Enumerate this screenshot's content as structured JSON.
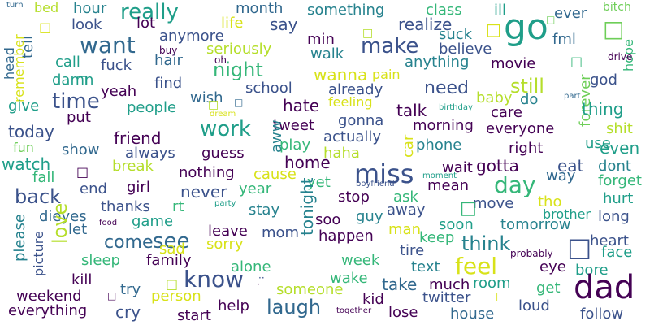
{
  "background": "#ffffff",
  "palette": {
    "dark_purple": "#440154",
    "indigo": "#3b528b",
    "blue": "#31688e",
    "teal": "#26828e",
    "teal_green": "#1f9e89",
    "green": "#35b779",
    "light_green": "#6ece58",
    "yellow_green": "#b5de2b",
    "yellow": "#d8e219"
  },
  "words": [
    {
      "text": "turn",
      "color": "#31688e",
      "weight": 3
    },
    {
      "text": "bed",
      "color": "#b5de2b",
      "weight": 4
    },
    {
      "text": "hour",
      "color": "#26828e",
      "weight": 5
    },
    {
      "text": "really",
      "color": "#1f9e89",
      "weight": 7
    },
    {
      "text": "month",
      "color": "#31688e",
      "weight": 5
    },
    {
      "text": "something",
      "color": "#26828e",
      "weight": 5
    },
    {
      "text": "class",
      "color": "#35b779",
      "weight": 5
    },
    {
      "text": "ill",
      "color": "#1f9e89",
      "weight": 5
    },
    {
      "text": "ever",
      "color": "#31688e",
      "weight": 5
    },
    {
      "text": "bitch",
      "color": "#6ece58",
      "weight": 4
    },
    {
      "text": "go",
      "color": "#1f9e89",
      "weight": 9
    },
    {
      "text": "look",
      "color": "#3b528b",
      "weight": 5
    },
    {
      "text": "lot",
      "color": "#440154",
      "weight": 5
    },
    {
      "text": "life",
      "color": "#d8e219",
      "weight": 5
    },
    {
      "text": "say",
      "color": "#3b528b",
      "weight": 5
    },
    {
      "text": "realize",
      "color": "#3b528b",
      "weight": 5
    },
    {
      "text": "suck",
      "color": "#26828e",
      "weight": 5
    },
    {
      "text": "fml",
      "color": "#31688e",
      "weight": 5
    },
    {
      "text": "want",
      "color": "#31688e",
      "weight": 8
    },
    {
      "text": "anymore",
      "color": "#3b528b",
      "weight": 5
    },
    {
      "text": "min",
      "color": "#440154",
      "weight": 5
    },
    {
      "text": "make",
      "color": "#3b528b",
      "weight": 7
    },
    {
      "text": "believe",
      "color": "#3b528b",
      "weight": 5
    },
    {
      "text": "tell",
      "color": "#31688e",
      "weight": 5
    },
    {
      "text": "seriously",
      "color": "#b5de2b",
      "weight": 5
    },
    {
      "text": "walk",
      "color": "#26828e",
      "weight": 5
    },
    {
      "text": "hope",
      "color": "#35b779",
      "weight": 5
    },
    {
      "text": "buy",
      "color": "#440154",
      "weight": 3
    },
    {
      "text": "hair",
      "color": "#31688e",
      "weight": 5
    },
    {
      "text": "oh",
      "color": "#440154",
      "weight": 3
    },
    {
      "text": "drive",
      "color": "#440154",
      "weight": 3
    },
    {
      "text": "call",
      "color": "#1f9e89",
      "weight": 5
    },
    {
      "text": "fuck",
      "color": "#3b528b",
      "weight": 5
    },
    {
      "text": "night",
      "color": "#35b779",
      "weight": 7
    },
    {
      "text": "anything",
      "color": "#26828e",
      "weight": 5
    },
    {
      "text": "movie",
      "color": "#440154",
      "weight": 5
    },
    {
      "text": "head",
      "color": "#31688e",
      "weight": 5
    },
    {
      "text": "remember",
      "color": "#d8e219",
      "weight": 5
    },
    {
      "text": "damn",
      "color": "#1f9e89",
      "weight": 5
    },
    {
      "text": "find",
      "color": "#3b528b",
      "weight": 5
    },
    {
      "text": "wanna",
      "color": "#d8e219",
      "weight": 5
    },
    {
      "text": "pain",
      "color": "#d8e219",
      "weight": 4
    },
    {
      "text": "god",
      "color": "#3b528b",
      "weight": 5
    },
    {
      "text": "yeah",
      "color": "#440154",
      "weight": 5
    },
    {
      "text": "school",
      "color": "#3b528b",
      "weight": 5
    },
    {
      "text": "need",
      "color": "#3b528b",
      "weight": 6
    },
    {
      "text": "still",
      "color": "#b5de2b",
      "weight": 7
    },
    {
      "text": "time",
      "color": "#3b528b",
      "weight": 7
    },
    {
      "text": "already",
      "color": "#3b528b",
      "weight": 5
    },
    {
      "text": "forever",
      "color": "#6ece58",
      "weight": 5
    },
    {
      "text": "part",
      "color": "#31688e",
      "weight": 3
    },
    {
      "text": "give",
      "color": "#1f9e89",
      "weight": 5
    },
    {
      "text": "people",
      "color": "#1f9e89",
      "weight": 5
    },
    {
      "text": "wish",
      "color": "#31688e",
      "weight": 5
    },
    {
      "text": "feeling",
      "color": "#d8e219",
      "weight": 5
    },
    {
      "text": "baby",
      "color": "#b5de2b",
      "weight": 5
    },
    {
      "text": "do",
      "color": "#26828e",
      "weight": 5
    },
    {
      "text": "thing",
      "color": "#1f9e89",
      "weight": 5
    },
    {
      "text": "hate",
      "color": "#440154",
      "weight": 6
    },
    {
      "text": "talk",
      "color": "#440154",
      "weight": 5
    },
    {
      "text": "birthday",
      "color": "#1f9e89",
      "weight": 3
    },
    {
      "text": "care",
      "color": "#440154",
      "weight": 5
    },
    {
      "text": "put",
      "color": "#440154",
      "weight": 5
    },
    {
      "text": "dream",
      "color": "#d8e219",
      "weight": 3
    },
    {
      "text": "gonna",
      "color": "#3b528b",
      "weight": 5
    },
    {
      "text": "tweet",
      "color": "#440154",
      "weight": 5
    },
    {
      "text": "morning",
      "color": "#440154",
      "weight": 5
    },
    {
      "text": "everyone",
      "color": "#440154",
      "weight": 5
    },
    {
      "text": "shit",
      "color": "#b5de2b",
      "weight": 5
    },
    {
      "text": "today",
      "color": "#3b528b",
      "weight": 6
    },
    {
      "text": "friend",
      "color": "#440154",
      "weight": 6
    },
    {
      "text": "work",
      "color": "#1f9e89",
      "weight": 7
    },
    {
      "text": "aww",
      "color": "#26828e",
      "weight": 5
    },
    {
      "text": "actually",
      "color": "#3b528b",
      "weight": 5
    },
    {
      "text": "car",
      "color": "#d8e219",
      "weight": 5
    },
    {
      "text": "phone",
      "color": "#26828e",
      "weight": 5
    },
    {
      "text": "right",
      "color": "#440154",
      "weight": 5
    },
    {
      "text": "use",
      "color": "#1f9e89",
      "weight": 5
    },
    {
      "text": "even",
      "color": "#1f9e89",
      "weight": 6
    },
    {
      "text": "fun",
      "color": "#6ece58",
      "weight": 5
    },
    {
      "text": "show",
      "color": "#31688e",
      "weight": 5
    },
    {
      "text": "always",
      "color": "#3b528b",
      "weight": 5
    },
    {
      "text": "guess",
      "color": "#440154",
      "weight": 5
    },
    {
      "text": "play",
      "color": "#35b779",
      "weight": 5
    },
    {
      "text": "haha",
      "color": "#b5de2b",
      "weight": 5
    },
    {
      "text": "watch",
      "color": "#1f9e89",
      "weight": 5
    },
    {
      "text": "home",
      "color": "#440154",
      "weight": 6
    },
    {
      "text": "miss",
      "color": "#3b528b",
      "weight": 8
    },
    {
      "text": "gotta",
      "color": "#440154",
      "weight": 5
    },
    {
      "text": "eat",
      "color": "#3b528b",
      "weight": 5
    },
    {
      "text": "dont",
      "color": "#26828e",
      "weight": 5
    },
    {
      "text": "break",
      "color": "#b5de2b",
      "weight": 5
    },
    {
      "text": "nothing",
      "color": "#440154",
      "weight": 5
    },
    {
      "text": "cause",
      "color": "#d8e219",
      "weight": 5
    },
    {
      "text": "wait",
      "color": "#440154",
      "weight": 5
    },
    {
      "text": "way",
      "color": "#31688e",
      "weight": 5
    },
    {
      "text": "forget",
      "color": "#35b779",
      "weight": 5
    },
    {
      "text": "fall",
      "color": "#35b779",
      "weight": 5
    },
    {
      "text": "yet",
      "color": "#35b779",
      "weight": 5
    },
    {
      "text": "moment",
      "color": "#1f9e89",
      "weight": 3
    },
    {
      "text": "day",
      "color": "#35b779",
      "weight": 8
    },
    {
      "text": "back",
      "color": "#3b528b",
      "weight": 7
    },
    {
      "text": "end",
      "color": "#3b528b",
      "weight": 5
    },
    {
      "text": "girl",
      "color": "#440154",
      "weight": 5
    },
    {
      "text": "never",
      "color": "#3b528b",
      "weight": 6
    },
    {
      "text": "year",
      "color": "#35b779",
      "weight": 5
    },
    {
      "text": "boyfriend",
      "color": "#3b528b",
      "weight": 3
    },
    {
      "text": "mean",
      "color": "#440154",
      "weight": 5
    },
    {
      "text": "thanks",
      "color": "#3b528b",
      "weight": 5
    },
    {
      "text": "rt",
      "color": "#35b779",
      "weight": 5
    },
    {
      "text": "stop",
      "color": "#440154",
      "weight": 5
    },
    {
      "text": "ask",
      "color": "#35b779",
      "weight": 5
    },
    {
      "text": "move",
      "color": "#3b528b",
      "weight": 5
    },
    {
      "text": "tho",
      "color": "#d8e219",
      "weight": 5
    },
    {
      "text": "hurt",
      "color": "#1f9e89",
      "weight": 5
    },
    {
      "text": "dieyes",
      "color": "#31688e",
      "weight": 5
    },
    {
      "text": "party",
      "color": "#1f9e89",
      "weight": 3
    },
    {
      "text": "stay",
      "color": "#26828e",
      "weight": 5
    },
    {
      "text": "away",
      "color": "#3b528b",
      "weight": 5
    },
    {
      "text": "brother",
      "color": "#1f9e89",
      "weight": 5
    },
    {
      "text": "long",
      "color": "#3b528b",
      "weight": 5
    },
    {
      "text": "let",
      "color": "#31688e",
      "weight": 5
    },
    {
      "text": "game",
      "color": "#1f9e89",
      "weight": 5
    },
    {
      "text": "tonight",
      "color": "#26828e",
      "weight": 6
    },
    {
      "text": "soo",
      "color": "#440154",
      "weight": 5
    },
    {
      "text": "guy",
      "color": "#26828e",
      "weight": 5
    },
    {
      "text": "soon",
      "color": "#1f9e89",
      "weight": 5
    },
    {
      "text": "tomorrow",
      "color": "#26828e",
      "weight": 5
    },
    {
      "text": "food",
      "color": "#440154",
      "weight": 3
    },
    {
      "text": "leave",
      "color": "#440154",
      "weight": 5
    },
    {
      "text": "mom",
      "color": "#3b528b",
      "weight": 5
    },
    {
      "text": "man",
      "color": "#d8e219",
      "weight": 5
    },
    {
      "text": "heart",
      "color": "#3b528b",
      "weight": 5
    },
    {
      "text": "come",
      "color": "#31688e",
      "weight": 6
    },
    {
      "text": "see",
      "color": "#31688e",
      "weight": 7
    },
    {
      "text": "think",
      "color": "#26828e",
      "weight": 7
    },
    {
      "text": "love",
      "color": "#b5de2b",
      "weight": 7
    },
    {
      "text": "sad",
      "color": "#d8e219",
      "weight": 5
    },
    {
      "text": "sorry",
      "color": "#d8e219",
      "weight": 5
    },
    {
      "text": "happen",
      "color": "#440154",
      "weight": 5
    },
    {
      "text": "keep",
      "color": "#35b779",
      "weight": 5
    },
    {
      "text": "tire",
      "color": "#3b528b",
      "weight": 5
    },
    {
      "text": "face",
      "color": "#1f9e89",
      "weight": 5
    },
    {
      "text": "please",
      "color": "#26828e",
      "weight": 5
    },
    {
      "text": "picture",
      "color": "#3b528b",
      "weight": 4
    },
    {
      "text": "sleep",
      "color": "#35b779",
      "weight": 5
    },
    {
      "text": "family",
      "color": "#440154",
      "weight": 5
    },
    {
      "text": "week",
      "color": "#35b779",
      "weight": 5
    },
    {
      "text": "feel",
      "color": "#d8e219",
      "weight": 7
    },
    {
      "text": "probably",
      "color": "#440154",
      "weight": 3
    },
    {
      "text": "eye",
      "color": "#440154",
      "weight": 5
    },
    {
      "text": "alone",
      "color": "#35b779",
      "weight": 5
    },
    {
      "text": "text",
      "color": "#26828e",
      "weight": 5
    },
    {
      "text": "bore",
      "color": "#1f9e89",
      "weight": 5
    },
    {
      "text": "kill",
      "color": "#440154",
      "weight": 5
    },
    {
      "text": "know",
      "color": "#3b528b",
      "weight": 8
    },
    {
      "text": "wake",
      "color": "#35b779",
      "weight": 5
    },
    {
      "text": "take",
      "color": "#31688e",
      "weight": 6
    },
    {
      "text": "much",
      "color": "#440154",
      "weight": 5
    },
    {
      "text": "room",
      "color": "#1f9e89",
      "weight": 5
    },
    {
      "text": "dad",
      "color": "#440154",
      "weight": 5
    },
    {
      "text": "get",
      "color": "#35b779",
      "weight": 9
    },
    {
      "text": "try",
      "color": "#31688e",
      "weight": 5
    },
    {
      "text": "someone",
      "color": "#b5de2b",
      "weight": 5
    },
    {
      "text": "kid",
      "color": "#440154",
      "weight": 5
    },
    {
      "text": "weekend",
      "color": "#440154",
      "weight": 5
    },
    {
      "text": "person",
      "color": "#d8e219",
      "weight": 5
    },
    {
      "text": "twitter",
      "color": "#3b528b",
      "weight": 5
    },
    {
      "text": "loud",
      "color": "#3b528b",
      "weight": 5
    },
    {
      "text": "laugh",
      "color": "#31688e",
      "weight": 6
    },
    {
      "text": "everything",
      "color": "#440154",
      "weight": 5
    },
    {
      "text": "cry",
      "color": "#3b528b",
      "weight": 6
    },
    {
      "text": "start",
      "color": "#440154",
      "weight": 5
    },
    {
      "text": "help",
      "color": "#440154",
      "weight": 5
    },
    {
      "text": "together",
      "color": "#440154",
      "weight": 3
    },
    {
      "text": "lose",
      "color": "#440154",
      "weight": 5
    },
    {
      "text": "house",
      "color": "#31688e",
      "weight": 5
    },
    {
      "text": "follow",
      "color": "#3b528b",
      "weight": 5
    },
    {
      "text": "··",
      "color": "#3b528b",
      "weight": 1
    },
    {
      "text": "·",
      "color": "#440154",
      "weight": 1
    }
  ],
  "glyphs": [
    {
      "text": "□",
      "color": "#d8e219",
      "weight": 4
    },
    {
      "text": "□",
      "color": "#b5de2b",
      "weight": 4
    },
    {
      "text": "□",
      "color": "#d8e219",
      "weight": 5
    },
    {
      "text": "□",
      "color": "#6ece58",
      "weight": 3
    },
    {
      "text": "□",
      "color": "#6ece58",
      "weight": 4
    },
    {
      "text": "□",
      "color": "#1f9e89",
      "weight": 4
    },
    {
      "text": "□",
      "color": "#b5de2b",
      "weight": 4
    },
    {
      "text": "□",
      "color": "#35b779",
      "weight": 4
    },
    {
      "text": "□",
      "color": "#35b779",
      "weight": 6
    },
    {
      "text": "□",
      "color": "#3b528b",
      "weight": 8
    },
    {
      "text": "□",
      "color": "#440154",
      "weight": 4
    },
    {
      "text": "□",
      "color": "#31688e",
      "weight": 3
    },
    {
      "text": "□",
      "color": "#b5de2b",
      "weight": 4
    },
    {
      "text": "□",
      "color": "#440154",
      "weight": 3
    },
    {
      "text": "□",
      "color": "#d8e219",
      "weight": 3
    }
  ]
}
